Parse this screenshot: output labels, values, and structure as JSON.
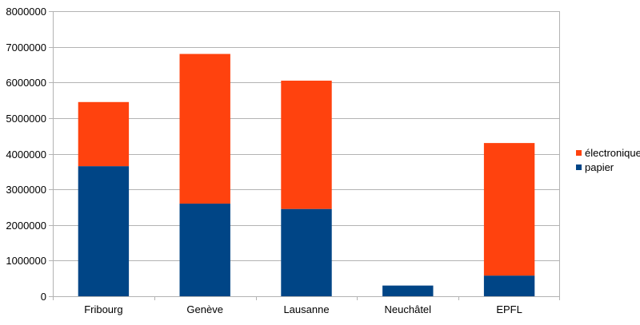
{
  "chart_data": {
    "type": "bar",
    "stacked": true,
    "categories": [
      "Fribourg",
      "Genève",
      "Lausanne",
      "Neuchâtel",
      "EPFL"
    ],
    "series": [
      {
        "name": "papier",
        "color": "#004586",
        "values": [
          3650000,
          2600000,
          2450000,
          300000,
          580000
        ]
      },
      {
        "name": "électronique",
        "color": "#ff420e",
        "values": [
          1800000,
          4200000,
          3600000,
          0,
          3720000
        ]
      }
    ],
    "ylim": [
      0,
      8000000
    ],
    "yticks": [
      0,
      1000000,
      2000000,
      3000000,
      4000000,
      5000000,
      6000000,
      7000000,
      8000000
    ],
    "ytick_labels": [
      "0",
      "1000000",
      "2000000",
      "3000000",
      "4000000",
      "5000000",
      "6000000",
      "7000000",
      "8000000"
    ],
    "grid": true,
    "legend": {
      "position": "right",
      "order": [
        "électronique",
        "papier"
      ]
    }
  }
}
